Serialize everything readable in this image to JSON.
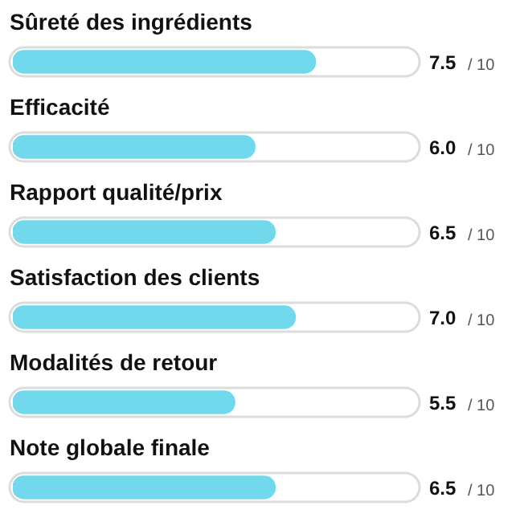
{
  "chart_data": {
    "type": "bar",
    "orientation": "horizontal",
    "categories": [
      "Sûreté des ingrédients",
      "Efficacité",
      "Rapport qualité/prix",
      "Satisfaction des clients",
      "Modalités de retour",
      "Note globale finale"
    ],
    "values": [
      7.5,
      6.0,
      6.5,
      7.0,
      5.5,
      6.5
    ],
    "color": "#72d9ec",
    "xlim": [
      0,
      10
    ],
    "value_labels": [
      "7.5",
      "6.0",
      "6.5",
      "7.0",
      "5.5",
      "6.5"
    ],
    "annotations": [
      "/ 10",
      "/ 10",
      "/ 10",
      "/ 10",
      "/ 10",
      "/ 10"
    ]
  }
}
